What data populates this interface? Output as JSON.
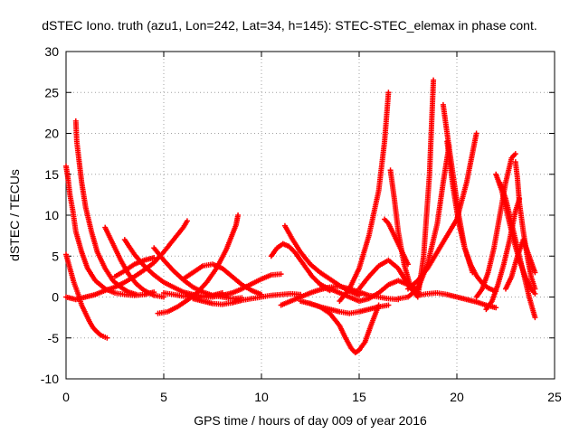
{
  "chart_data": {
    "type": "scatter",
    "title": "dSTEC Iono. truth (azu1, Lon=242, Lat=34, h=145): STEC-STEC_elemax in phase cont.",
    "xlabel": "GPS time / hours of day 009 of year 2016",
    "ylabel": "dSTEC  / TECUs",
    "xlim": [
      0,
      25
    ],
    "ylim": [
      -10,
      30
    ],
    "xticks": [
      0,
      5,
      10,
      15,
      20,
      25
    ],
    "yticks": [
      -10,
      -5,
      0,
      5,
      10,
      15,
      20,
      25,
      30
    ],
    "grid": true,
    "marker": "+",
    "color": "#ff0000",
    "series": [
      {
        "x": [
          0.0,
          0.2,
          0.4,
          0.6,
          0.8,
          1.0,
          1.2,
          1.4,
          1.6,
          1.8,
          2.0,
          2.1
        ],
        "y": [
          5.2,
          3.5,
          1.8,
          0.5,
          -1.0,
          -2.0,
          -3.0,
          -3.8,
          -4.3,
          -4.7,
          -4.9,
          -5.0
        ]
      },
      {
        "x": [
          0.0,
          0.1,
          0.2,
          0.35,
          0.5,
          0.8,
          1.1,
          1.5,
          2.0,
          2.5,
          3.0,
          3.5,
          4.0,
          4.5
        ],
        "y": [
          16.0,
          14.5,
          12.5,
          10.5,
          8.0,
          5.5,
          3.5,
          2.0,
          1.0,
          0.5,
          0.3,
          0.2,
          0.3,
          0.6
        ]
      },
      {
        "x": [
          0.5,
          0.55,
          0.65,
          0.8,
          1.0,
          1.3,
          1.6,
          2.0,
          2.4,
          2.8,
          3.2,
          3.6
        ],
        "y": [
          21.5,
          19.0,
          17.0,
          14.0,
          11.0,
          8.0,
          5.5,
          3.5,
          2.0,
          1.2,
          0.6,
          0.3
        ]
      },
      {
        "x": [
          0.0,
          0.5,
          1.0,
          1.5,
          2.0,
          2.5,
          3.0,
          3.5,
          4.0,
          4.5,
          5.0,
          5.5,
          6.0,
          6.2
        ],
        "y": [
          0.0,
          -0.3,
          0.0,
          0.3,
          0.8,
          1.2,
          1.8,
          2.5,
          3.3,
          4.2,
          5.5,
          7.0,
          8.5,
          9.3
        ]
      },
      {
        "x": [
          2.0,
          2.4,
          2.8,
          3.2,
          3.6,
          4.0,
          4.5,
          5.0
        ],
        "y": [
          8.5,
          6.5,
          4.5,
          2.8,
          1.6,
          0.8,
          0.2,
          0.0
        ]
      },
      {
        "x": [
          3.0,
          3.5,
          4.0,
          4.5,
          5.0,
          5.5,
          6.0,
          6.5,
          7.0,
          7.5,
          8.0
        ],
        "y": [
          7.0,
          5.2,
          3.8,
          2.7,
          1.8,
          1.2,
          0.6,
          0.3,
          0.1,
          0.2,
          0.5
        ]
      },
      {
        "x": [
          4.5,
          5.0,
          5.5,
          6.0,
          6.5,
          7.0,
          7.5,
          8.0,
          8.5,
          9.0
        ],
        "y": [
          6.0,
          4.5,
          3.2,
          2.1,
          1.2,
          0.6,
          0.2,
          0.0,
          -0.2,
          -0.1
        ]
      },
      {
        "x": [
          4.7,
          5.2,
          5.7,
          6.2,
          6.7,
          7.2,
          7.7,
          8.2,
          8.7,
          8.8
        ],
        "y": [
          -2.0,
          -1.8,
          -1.2,
          -0.4,
          0.5,
          1.8,
          3.5,
          5.8,
          8.8,
          10.0
        ]
      },
      {
        "x": [
          5.0,
          5.5,
          6.0,
          6.5,
          7.0,
          7.5,
          8.0,
          8.5,
          9.0,
          9.5,
          10.0,
          10.5,
          11.0
        ],
        "y": [
          0.5,
          0.3,
          0.1,
          0.0,
          0.0,
          0.0,
          0.2,
          0.5,
          1.0,
          1.6,
          2.2,
          2.7,
          2.8
        ]
      },
      {
        "x": [
          2.5,
          3.0,
          3.5,
          4.0,
          4.5
        ],
        "y": [
          2.5,
          3.2,
          4.0,
          4.5,
          4.8
        ]
      },
      {
        "x": [
          6.0,
          6.5,
          7.0,
          7.5,
          8.0,
          8.5,
          9.0,
          9.5,
          10.0
        ],
        "y": [
          2.2,
          3.0,
          3.8,
          4.0,
          3.5,
          2.5,
          1.5,
          0.8,
          0.3
        ]
      },
      {
        "x": [
          6.5,
          7.0,
          7.5,
          8.0,
          8.5,
          9.0,
          9.5,
          10.0,
          10.5,
          11.0,
          11.5,
          12.0
        ],
        "y": [
          -0.2,
          -0.5,
          -0.8,
          -0.9,
          -0.7,
          -0.4,
          -0.2,
          0.0,
          0.2,
          0.3,
          0.4,
          0.3
        ]
      },
      {
        "x": [
          10.5,
          10.8,
          11.1,
          11.4,
          11.7,
          12.0,
          12.3,
          12.6,
          12.9,
          13.2,
          13.5
        ],
        "y": [
          5.0,
          6.0,
          6.5,
          6.2,
          5.5,
          4.5,
          3.5,
          2.5,
          1.8,
          1.2,
          0.8
        ]
      },
      {
        "x": [
          11.2,
          11.6,
          12.0,
          12.5,
          13.0,
          13.5,
          14.0,
          14.5,
          15.0
        ],
        "y": [
          8.7,
          7.0,
          5.5,
          4.0,
          3.0,
          2.2,
          1.4,
          0.7,
          0.2
        ]
      },
      {
        "x": [
          11.0,
          11.5,
          12.0,
          12.5,
          13.0,
          13.5,
          14.0,
          14.5,
          15.0,
          15.5,
          16.0,
          16.5,
          17.0
        ],
        "y": [
          -1.0,
          -0.5,
          0.0,
          0.5,
          0.9,
          1.2,
          1.3,
          1.0,
          0.6,
          0.2,
          0.0,
          -0.2,
          -0.3
        ]
      },
      {
        "x": [
          12.0,
          12.5,
          13.0,
          13.5,
          14.0,
          14.3,
          14.6,
          14.8,
          15.0,
          15.3,
          15.6,
          16.0
        ],
        "y": [
          -0.5,
          -0.8,
          -1.2,
          -2.0,
          -3.5,
          -5.0,
          -6.3,
          -6.8,
          -6.5,
          -5.5,
          -3.5,
          -1.0
        ]
      },
      {
        "x": [
          13.0,
          13.5,
          14.0,
          14.5,
          15.0,
          15.5,
          16.0,
          16.5,
          17.0,
          17.5,
          18.0
        ],
        "y": [
          1.5,
          1.0,
          0.5,
          0.0,
          -0.5,
          -0.2,
          0.5,
          1.5,
          2.0,
          1.5,
          1.0
        ]
      },
      {
        "x": [
          12.5,
          13.0,
          13.5,
          14.0,
          14.5,
          15.0,
          15.5,
          16.0,
          16.5
        ],
        "y": [
          -0.8,
          -1.2,
          -1.5,
          -1.8,
          -2.0,
          -1.8,
          -1.5,
          -1.2,
          -1.0
        ]
      },
      {
        "x": [
          14.0,
          14.5,
          15.0,
          15.5,
          16.0,
          16.3,
          16.5
        ],
        "y": [
          -0.5,
          1.0,
          3.5,
          7.5,
          13.0,
          19.0,
          25.0
        ]
      },
      {
        "x": [
          15.0,
          15.5,
          16.0,
          16.5,
          17.0,
          17.5,
          18.0,
          18.3,
          18.6,
          18.8
        ],
        "y": [
          1.0,
          2.5,
          3.8,
          4.5,
          3.5,
          1.5,
          0.0,
          5.0,
          15.0,
          26.5
        ]
      },
      {
        "x": [
          16.3,
          16.5,
          16.7,
          16.9,
          17.1,
          17.3,
          17.5
        ],
        "y": [
          9.5,
          9.0,
          8.0,
          7.0,
          6.0,
          5.0,
          4.0
        ]
      },
      {
        "x": [
          16.6,
          16.8,
          17.0,
          17.3,
          17.6,
          18.0
        ],
        "y": [
          15.5,
          12.0,
          8.0,
          4.0,
          1.5,
          0.5
        ]
      },
      {
        "x": [
          17.0,
          17.5,
          18.0,
          18.5,
          19.0,
          19.3,
          19.6
        ],
        "y": [
          -0.2,
          0.0,
          1.0,
          4.0,
          9.0,
          14.0,
          18.5
        ]
      },
      {
        "x": [
          17.5,
          18.0,
          18.5,
          19.0,
          19.5,
          20.0,
          20.5,
          21.0
        ],
        "y": [
          1.0,
          2.0,
          3.5,
          5.5,
          7.5,
          9.5,
          14.0,
          20.0
        ]
      },
      {
        "x": [
          19.3,
          19.5,
          19.8,
          20.1,
          20.4,
          20.8
        ],
        "y": [
          23.5,
          20.0,
          15.0,
          10.0,
          6.0,
          3.0
        ]
      },
      {
        "x": [
          19.5,
          19.8,
          20.1,
          20.4,
          20.7,
          21.0,
          21.3,
          21.6,
          22.0
        ],
        "y": [
          19.0,
          13.5,
          9.0,
          6.0,
          4.0,
          2.6,
          1.7,
          1.1,
          0.7
        ]
      },
      {
        "x": [
          18.0,
          18.5,
          19.0,
          19.5,
          20.0,
          20.5,
          21.0,
          21.5,
          22.0
        ],
        "y": [
          0.2,
          0.4,
          0.5,
          0.3,
          0.0,
          -0.3,
          -0.6,
          -1.0,
          -1.3
        ]
      },
      {
        "x": [
          21.0,
          21.3,
          21.6,
          21.9,
          22.2,
          22.5,
          22.8,
          23.0
        ],
        "y": [
          0.0,
          1.0,
          3.0,
          6.0,
          10.0,
          14.0,
          17.0,
          17.5
        ]
      },
      {
        "x": [
          22.0,
          22.3,
          22.6,
          22.9,
          23.2,
          23.5,
          23.8,
          24.0
        ],
        "y": [
          15.0,
          13.0,
          10.0,
          7.0,
          4.5,
          2.5,
          1.0,
          0.4
        ]
      },
      {
        "x": [
          22.2,
          22.5,
          22.8,
          23.1,
          23.4,
          23.7,
          24.0
        ],
        "y": [
          14.0,
          12.0,
          9.0,
          6.0,
          3.0,
          0.0,
          -2.5
        ]
      },
      {
        "x": [
          21.5,
          21.8,
          22.1,
          22.4,
          22.7,
          23.0,
          23.2
        ],
        "y": [
          -1.5,
          -0.5,
          1.5,
          4.0,
          7.0,
          10.5,
          12.0
        ]
      },
      {
        "x": [
          22.5,
          22.8,
          23.1,
          23.4,
          23.7,
          24.0
        ],
        "y": [
          1.0,
          2.5,
          5.0,
          7.0,
          5.0,
          3.0
        ]
      },
      {
        "x": [
          23.0,
          23.1,
          23.2,
          23.4,
          23.6,
          23.8,
          24.0
        ],
        "y": [
          16.5,
          14.5,
          11.5,
          8.0,
          5.0,
          2.5,
          1.0
        ]
      }
    ]
  }
}
